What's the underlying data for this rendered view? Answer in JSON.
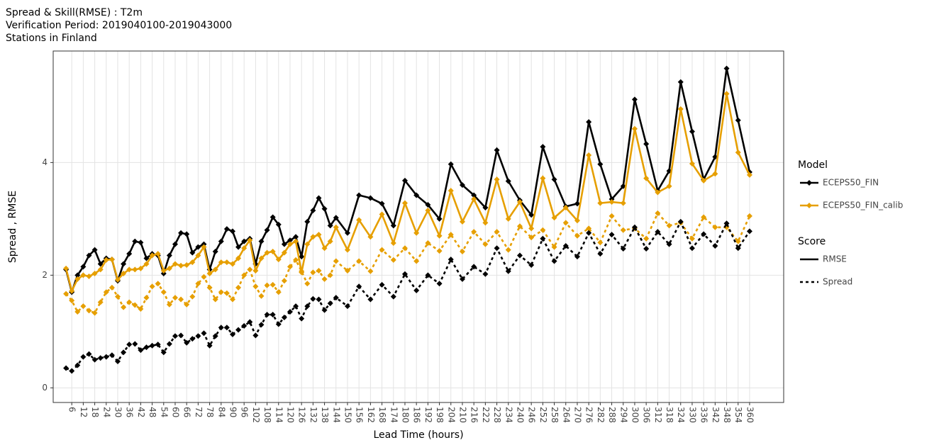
{
  "chart_data": {
    "type": "line",
    "title": [
      "Spread & Skill(RMSE) : T2m",
      "Verification Period: 2019040100-2019043000",
      "Stations in Finland"
    ],
    "xlabel": "Lead Time (hours)",
    "ylabel": "Spread , RMSE",
    "x": [
      3,
      6,
      9,
      12,
      15,
      18,
      21,
      24,
      27,
      30,
      33,
      36,
      39,
      42,
      45,
      48,
      51,
      54,
      57,
      60,
      63,
      66,
      69,
      72,
      75,
      78,
      81,
      84,
      87,
      90,
      93,
      96,
      99,
      102,
      105,
      108,
      111,
      114,
      117,
      120,
      123,
      126,
      129,
      132,
      135,
      138,
      141,
      144,
      150,
      156,
      162,
      168,
      174,
      180,
      186,
      192,
      198,
      204,
      210,
      216,
      222,
      228,
      234,
      240,
      246,
      252,
      258,
      264,
      270,
      276,
      282,
      288,
      294,
      300,
      306,
      312,
      318,
      324,
      330,
      336,
      342,
      348,
      354,
      360
    ],
    "xlim": [
      -3.7,
      377.8
    ],
    "xticks": [
      6,
      12,
      18,
      24,
      30,
      36,
      42,
      48,
      54,
      60,
      66,
      72,
      78,
      84,
      90,
      96,
      102,
      108,
      114,
      120,
      126,
      132,
      138,
      144,
      150,
      156,
      162,
      168,
      174,
      180,
      186,
      192,
      198,
      204,
      210,
      216,
      222,
      228,
      234,
      240,
      246,
      252,
      258,
      264,
      270,
      276,
      282,
      288,
      294,
      300,
      306,
      312,
      318,
      324,
      330,
      336,
      342,
      348,
      354,
      360
    ],
    "ylim": [
      -0.26,
      5.98
    ],
    "yticks": [
      0,
      2,
      4
    ],
    "grid": true,
    "series": [
      {
        "name": "ECEPS50_FIN",
        "score": "RMSE",
        "color": "#000000",
        "dash": "solid",
        "values": [
          2.1,
          1.7,
          2.0,
          2.15,
          2.35,
          2.45,
          2.2,
          2.3,
          2.28,
          1.9,
          2.2,
          2.38,
          2.6,
          2.58,
          2.3,
          2.38,
          2.35,
          2.03,
          2.35,
          2.55,
          2.75,
          2.73,
          2.4,
          2.5,
          2.55,
          2.1,
          2.42,
          2.6,
          2.82,
          2.78,
          2.5,
          2.6,
          2.65,
          2.2,
          2.6,
          2.8,
          3.03,
          2.9,
          2.55,
          2.62,
          2.68,
          2.33,
          2.95,
          3.15,
          3.37,
          3.18,
          2.88,
          3.02,
          2.75,
          3.42,
          3.37,
          3.27,
          2.88,
          3.68,
          3.42,
          3.25,
          3.0,
          3.97,
          3.6,
          3.42,
          3.2,
          4.22,
          3.67,
          3.33,
          3.07,
          4.28,
          3.7,
          3.22,
          3.27,
          4.72,
          3.97,
          3.35,
          3.58,
          5.12,
          4.33,
          3.5,
          3.85,
          5.43,
          4.55,
          3.7,
          4.1,
          5.67,
          4.75,
          3.83
        ]
      },
      {
        "name": "ECEPS50_FIN_calib",
        "score": "RMSE",
        "color": "#E69F00",
        "dash": "solid",
        "values": [
          2.12,
          1.72,
          1.93,
          2.0,
          1.98,
          2.03,
          2.1,
          2.27,
          2.28,
          1.92,
          2.03,
          2.1,
          2.1,
          2.12,
          2.2,
          2.35,
          2.38,
          2.08,
          2.12,
          2.2,
          2.17,
          2.18,
          2.23,
          2.35,
          2.5,
          2.03,
          2.1,
          2.23,
          2.23,
          2.2,
          2.3,
          2.48,
          2.62,
          2.08,
          2.3,
          2.4,
          2.42,
          2.28,
          2.4,
          2.55,
          2.6,
          2.05,
          2.55,
          2.68,
          2.72,
          2.48,
          2.6,
          2.85,
          2.45,
          2.98,
          2.68,
          3.08,
          2.57,
          3.28,
          2.75,
          3.15,
          2.7,
          3.5,
          2.95,
          3.35,
          2.93,
          3.7,
          3.0,
          3.3,
          2.83,
          3.72,
          3.02,
          3.2,
          2.97,
          4.13,
          3.28,
          3.3,
          3.28,
          4.6,
          3.72,
          3.47,
          3.58,
          4.95,
          3.98,
          3.68,
          3.8,
          5.22,
          4.18,
          3.78
        ]
      },
      {
        "name": "ECEPS50_FIN_calib",
        "score": "Spread",
        "color": "#E69F00",
        "dash": "dotted",
        "values": [
          1.67,
          1.55,
          1.35,
          1.45,
          1.37,
          1.33,
          1.52,
          1.7,
          1.78,
          1.62,
          1.43,
          1.52,
          1.47,
          1.4,
          1.6,
          1.8,
          1.85,
          1.7,
          1.48,
          1.6,
          1.57,
          1.48,
          1.62,
          1.85,
          1.97,
          1.78,
          1.57,
          1.7,
          1.68,
          1.57,
          1.78,
          2.0,
          2.1,
          1.8,
          1.63,
          1.82,
          1.83,
          1.7,
          1.9,
          2.15,
          2.27,
          2.07,
          1.85,
          2.05,
          2.08,
          1.93,
          2.0,
          2.25,
          2.08,
          2.25,
          2.07,
          2.45,
          2.27,
          2.48,
          2.25,
          2.57,
          2.43,
          2.72,
          2.42,
          2.77,
          2.55,
          2.77,
          2.45,
          2.87,
          2.67,
          2.8,
          2.5,
          2.93,
          2.7,
          2.83,
          2.58,
          3.05,
          2.8,
          2.83,
          2.65,
          3.1,
          2.88,
          2.93,
          2.65,
          3.03,
          2.85,
          2.85,
          2.6,
          3.05
        ]
      },
      {
        "name": "ECEPS50_FIN",
        "score": "Spread",
        "color": "#000000",
        "dash": "dotted",
        "values": [
          0.35,
          0.3,
          0.4,
          0.55,
          0.6,
          0.5,
          0.53,
          0.55,
          0.58,
          0.47,
          0.63,
          0.77,
          0.78,
          0.67,
          0.72,
          0.75,
          0.77,
          0.63,
          0.78,
          0.92,
          0.93,
          0.8,
          0.87,
          0.92,
          0.97,
          0.75,
          0.92,
          1.07,
          1.07,
          0.95,
          1.03,
          1.1,
          1.17,
          0.93,
          1.12,
          1.3,
          1.3,
          1.13,
          1.25,
          1.35,
          1.45,
          1.23,
          1.45,
          1.58,
          1.57,
          1.38,
          1.5,
          1.6,
          1.45,
          1.8,
          1.57,
          1.83,
          1.62,
          2.02,
          1.73,
          2.0,
          1.85,
          2.28,
          1.93,
          2.15,
          2.02,
          2.48,
          2.07,
          2.35,
          2.18,
          2.65,
          2.25,
          2.52,
          2.33,
          2.75,
          2.38,
          2.72,
          2.47,
          2.85,
          2.47,
          2.77,
          2.55,
          2.95,
          2.48,
          2.73,
          2.52,
          2.92,
          2.48,
          2.78
        ]
      }
    ],
    "legends": [
      {
        "title": "Model",
        "entries": [
          {
            "name": "ECEPS50_FIN",
            "color": "#000000"
          },
          {
            "name": "ECEPS50_FIN_calib",
            "color": "#E69F00"
          }
        ]
      },
      {
        "title": "Score",
        "entries": [
          {
            "name": "RMSE",
            "dash": "solid"
          },
          {
            "name": "Spread",
            "dash": "dotted"
          }
        ]
      }
    ]
  }
}
